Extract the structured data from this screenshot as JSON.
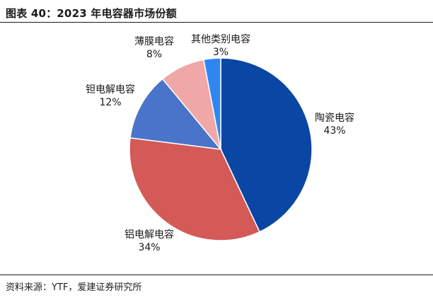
{
  "figure": {
    "title": "图表 40：2023 年电容器市场份额",
    "source": "资料来源：YTF，爱建证券研究所"
  },
  "chart_data": {
    "type": "pie",
    "title": "",
    "slices": [
      {
        "name": "陶瓷电容",
        "value": 43,
        "value_label": "43%",
        "color": "#0a46a3"
      },
      {
        "name": "铝电解电容",
        "value": 34,
        "value_label": "34%",
        "color": "#d35a57"
      },
      {
        "name": "钽电解电容",
        "value": 12,
        "value_label": "12%",
        "color": "#4a74c9"
      },
      {
        "name": "薄膜电容",
        "value": 8,
        "value_label": "8%",
        "color": "#f0a7a7"
      },
      {
        "name": "其他类别电容",
        "value": 3,
        "value_label": "3%",
        "color": "#2f86f0"
      }
    ],
    "start": "12 o'clock",
    "direction": "clockwise",
    "legend": "none, labels beside slices"
  }
}
